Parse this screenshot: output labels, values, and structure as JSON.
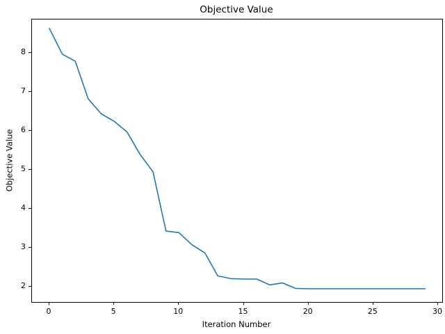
{
  "figure": {
    "title": "Objective Value",
    "xlabel": "Iteration Number",
    "ylabel": "Objective Value"
  },
  "chart_data": {
    "type": "line",
    "title": "Objective Value",
    "xlabel": "Iteration Number",
    "ylabel": "Objective Value",
    "x": [
      0,
      1,
      2,
      3,
      4,
      5,
      6,
      7,
      8,
      9,
      10,
      11,
      12,
      13,
      14,
      15,
      16,
      17,
      18,
      19,
      20,
      21,
      22,
      23,
      24,
      25,
      26,
      27,
      28,
      29
    ],
    "y": [
      8.63,
      7.97,
      7.79,
      6.82,
      6.44,
      6.25,
      5.97,
      5.4,
      4.95,
      3.43,
      3.39,
      3.08,
      2.87,
      2.28,
      2.21,
      2.2,
      2.2,
      2.05,
      2.1,
      1.96,
      1.95,
      1.95,
      1.95,
      1.95,
      1.95,
      1.95,
      1.95,
      1.95,
      1.95,
      1.95
    ],
    "x_ticks": [
      0,
      5,
      10,
      15,
      20,
      25,
      30
    ],
    "y_ticks": [
      2,
      3,
      4,
      5,
      6,
      7,
      8
    ],
    "xlim": [
      -1.34,
      30.32
    ],
    "ylim": [
      1.61,
      8.86
    ],
    "line_color": "#1f77b4",
    "line_width": 1.6,
    "grid": false,
    "legend_position": "none"
  }
}
